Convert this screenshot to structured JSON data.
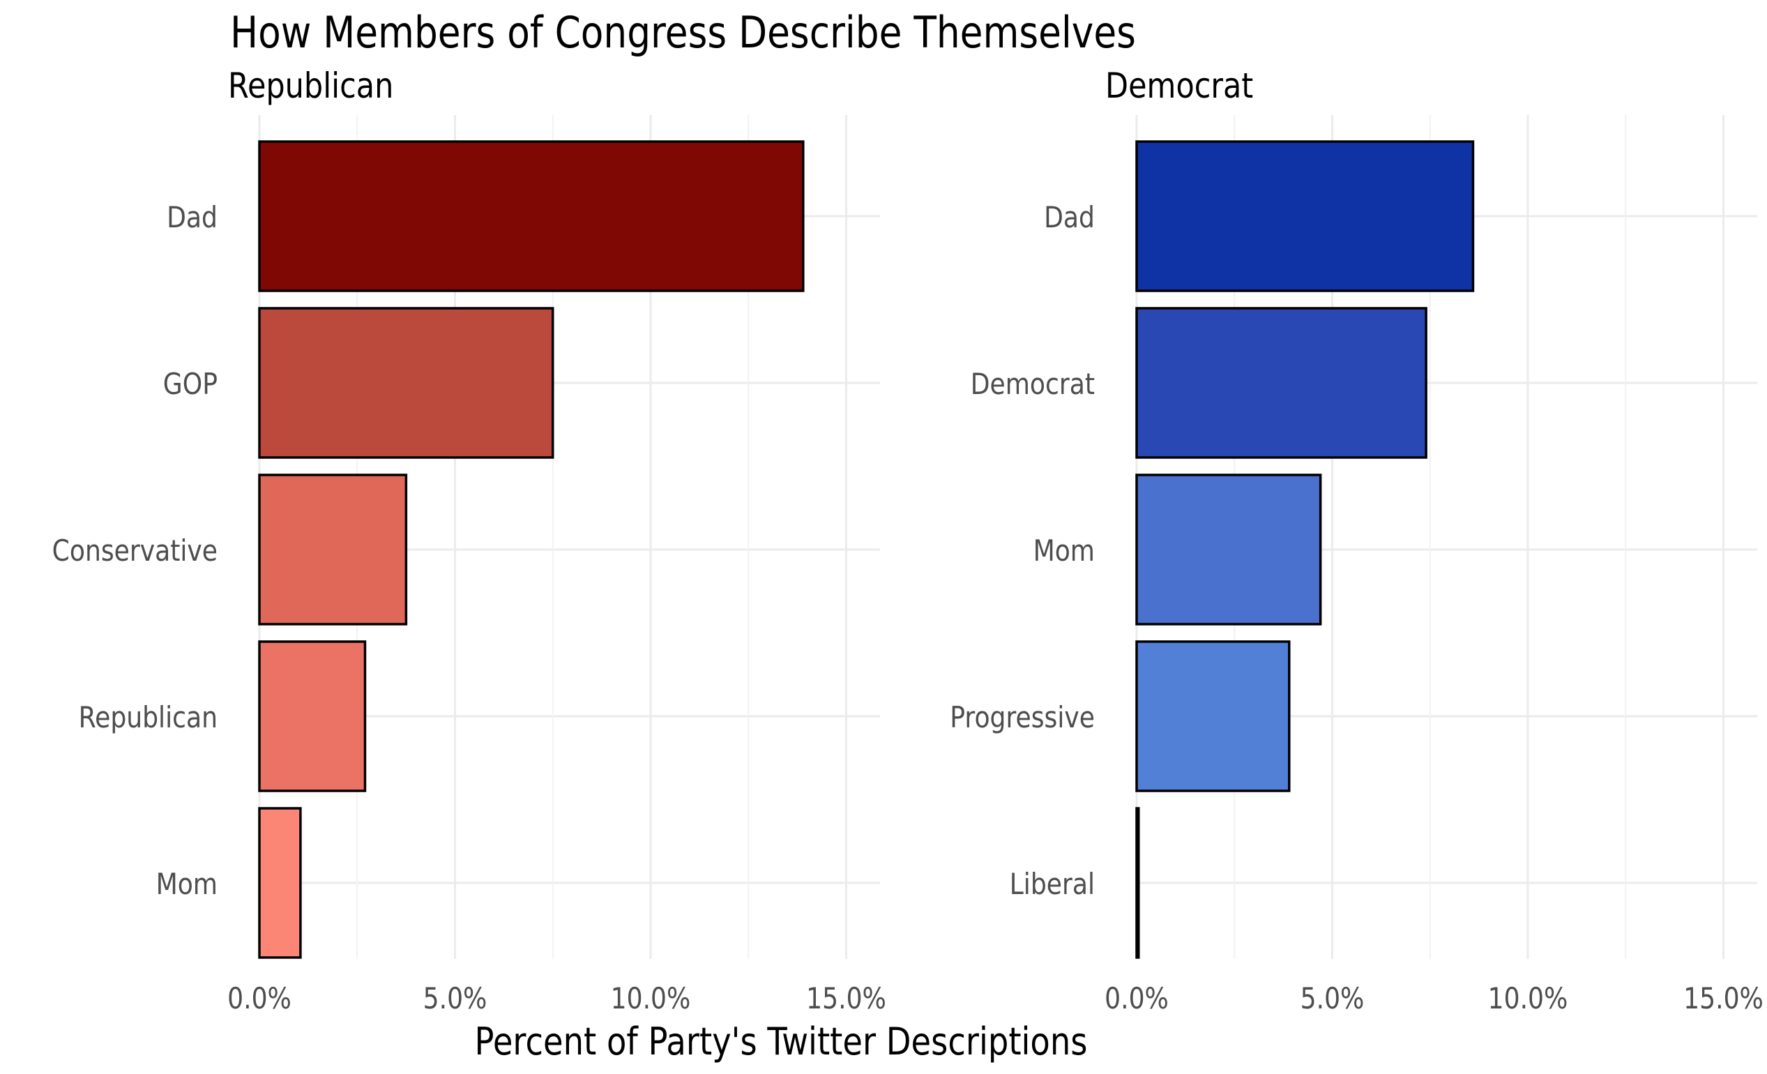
{
  "chart_data": {
    "type": "bar",
    "orientation": "horizontal",
    "title": "How Members of Congress Describe Themselves",
    "xlabel": "Percent of Party's Twitter Descriptions",
    "x_ticks": [
      "0.0%",
      "5.0%",
      "10.0%",
      "15.0%"
    ],
    "xlim": [
      0,
      15.5
    ],
    "grid": true,
    "panels": [
      {
        "name": "Republican",
        "categories": [
          "Dad",
          "GOP",
          "Conservative",
          "Republican",
          "Mom"
        ],
        "values": [
          13.9,
          7.5,
          3.75,
          2.7,
          1.05
        ],
        "colors": [
          "#7f0805",
          "#bc4a3c",
          "#e06858",
          "#ea7365",
          "#fb8676"
        ]
      },
      {
        "name": "Democrat",
        "categories": [
          "Dad",
          "Democrat",
          "Mom",
          "Progressive",
          "Liberal"
        ],
        "values": [
          8.6,
          7.4,
          4.7,
          3.9,
          0.05
        ],
        "colors": [
          "#0f33a4",
          "#2a48b4",
          "#4a71cd",
          "#5280d6",
          "#6a94e3"
        ]
      }
    ]
  }
}
